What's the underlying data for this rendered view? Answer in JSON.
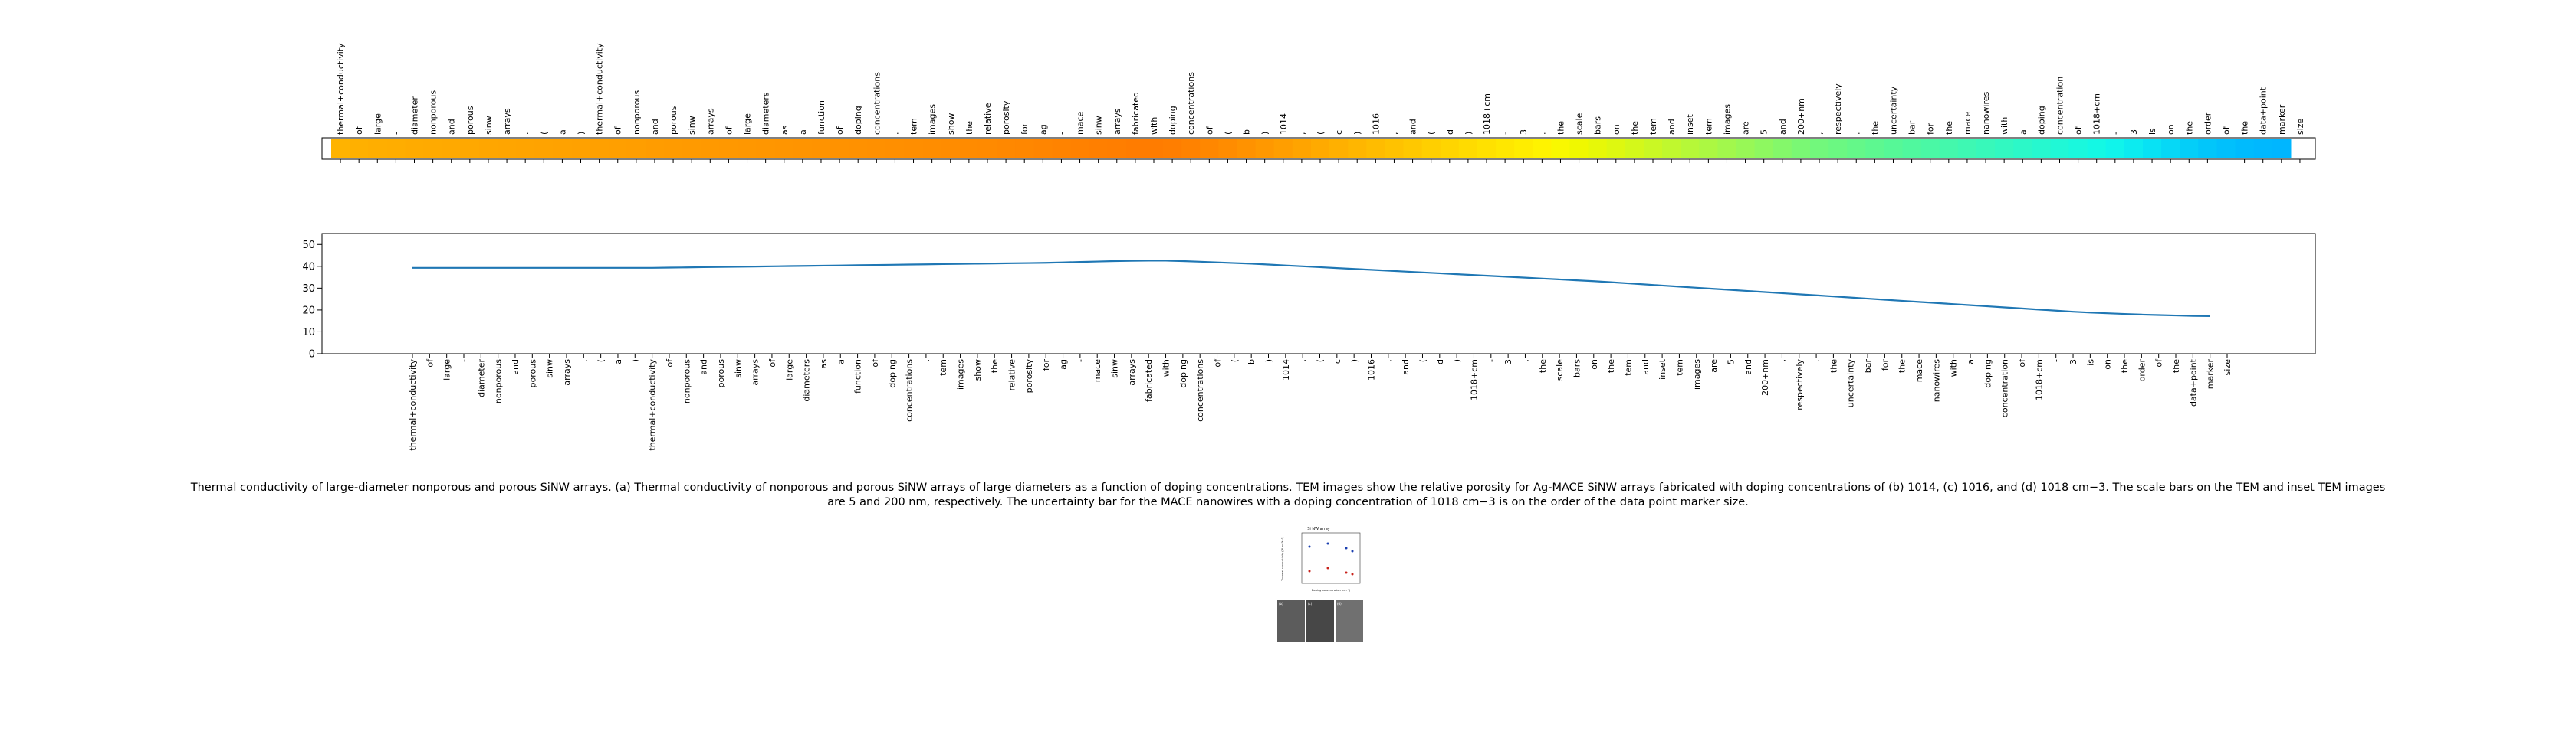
{
  "tokens": [
    "thermal+conductivity",
    "of",
    "large",
    "-",
    "diameter",
    "nonporous",
    "and",
    "porous",
    "sinw",
    "arrays",
    ".",
    "(",
    "a",
    ")",
    "thermal+conductivity",
    "of",
    "nonporous",
    "and",
    "porous",
    "sinw",
    "arrays",
    "of",
    "large",
    "diameters",
    "as",
    "a",
    "function",
    "of",
    "doping",
    "concentrations",
    ".",
    "tem",
    "images",
    "show",
    "the",
    "relative",
    "porosity",
    "for",
    "ag",
    "-",
    "mace",
    "sinw",
    "arrays",
    "fabricated",
    "with",
    "doping",
    "concentrations",
    "of",
    "(",
    "b",
    ")",
    "1014",
    ",",
    "(",
    "c",
    ")",
    "1016",
    ",",
    "and",
    "(",
    "d",
    ")",
    "1018+cm",
    "-",
    "3",
    ".",
    "the",
    "scale",
    "bars",
    "on",
    "the",
    "tem",
    "and",
    "inset",
    "tem",
    "images",
    "are",
    "5",
    "and",
    "200+nm",
    ",",
    "respectively",
    ".",
    "the",
    "uncertainty",
    "bar",
    "for",
    "the",
    "mace",
    "nanowires",
    "with",
    "a",
    "doping",
    "concentration",
    "of",
    "1018+cm",
    "-",
    "3",
    "is",
    "on",
    "the",
    "order",
    "of",
    "the",
    "data+point",
    "marker",
    "size"
  ],
  "caption": "Thermal conductivity of large-diameter nonporous and porous SiNW arrays. (a) Thermal conductivity of nonporous and porous SiNW arrays of large diameters as a function of doping concentrations. TEM images show the relative porosity for Ag-MACE SiNW arrays fabricated with doping concentrations of (b) 1014, (c) 1016, and (d) 1018 cm−3. The scale bars on the TEM and inset TEM images are 5 and 200 nm, respectively. The uncertainty bar for the MACE nanowires with a doping concentration of 1018 cm−3 is on the order of the data point marker size.",
  "thumbnail": {
    "header": "Si NW array",
    "ylabel": "Thermal conductivity (W m⁻¹K⁻¹)",
    "xlabel": "Doping concentration (cm⁻³)",
    "panel_labels": [
      "(b)",
      "(c)",
      "(d)"
    ]
  },
  "chart_data": [
    {
      "type": "heatmap",
      "title": "",
      "colormap": "jet (orange → yellow → green → cyan)",
      "x_tick_labels_ref": "tokens",
      "colors": [
        "#ffb300",
        "#ffb000",
        "#ffae00",
        "#ffad00",
        "#ffab00",
        "#ffaa00",
        "#ffa900",
        "#ffa800",
        "#ffa600",
        "#ffa500",
        "#ffa400",
        "#ffa300",
        "#ffa200",
        "#ffa100",
        "#ffa000",
        "#ff9f00",
        "#ff9e00",
        "#ff9c00",
        "#ff9b00",
        "#ff9a00",
        "#ff9900",
        "#ff9800",
        "#ff9700",
        "#ff9600",
        "#ff9500",
        "#ff9400",
        "#ff9300",
        "#ff9200",
        "#ff9100",
        "#ff9000",
        "#ff8f00",
        "#ff8e00",
        "#ff8d00",
        "#ff8c00",
        "#ff8b00",
        "#ff8a00",
        "#ff8800",
        "#ff8700",
        "#ff8500",
        "#ff8300",
        "#ff8100",
        "#ff7f00",
        "#ff7e00",
        "#ff7c00",
        "#ff7c00",
        "#ff7e00",
        "#ff8200",
        "#ff8700",
        "#ff8c00",
        "#ff9200",
        "#ff9800",
        "#ff9e00",
        "#ffa400",
        "#ffaa00",
        "#ffb000",
        "#ffb600",
        "#ffbc00",
        "#ffc200",
        "#ffc800",
        "#ffcf00",
        "#ffd500",
        "#ffdb00",
        "#ffe100",
        "#ffe700",
        "#ffed00",
        "#fff300",
        "#f9f800",
        "#f0f800",
        "#e7f808",
        "#def810",
        "#d4f81a",
        "#caf824",
        "#c0f82e",
        "#b6f838",
        "#acf842",
        "#a2f84c",
        "#98f856",
        "#8ef860",
        "#84f86a",
        "#7af874",
        "#72f87c",
        "#6bf882",
        "#64f889",
        "#5df890",
        "#56f897",
        "#50f89e",
        "#4af8a5",
        "#44f8ac",
        "#3ef8b3",
        "#38f8ba",
        "#32f8c1",
        "#2cf8c8",
        "#26f8cf",
        "#20f8d6",
        "#1af8dd",
        "#14f8e4",
        "#10f4eb",
        "#0cebf0",
        "#08e2f4",
        "#06d8f6",
        "#04cef8",
        "#02c6fa",
        "#01c0fc",
        "#00bbfd",
        "#00b8fe",
        "#00b6ff"
      ]
    },
    {
      "type": "line",
      "title": "",
      "xlabel": "",
      "ylabel": "",
      "x_tick_labels_ref": "tokens",
      "y_ticks": [
        0,
        10,
        20,
        30,
        40,
        50
      ],
      "ylim": [
        0,
        55
      ],
      "grid": false,
      "color": "#1f77b4",
      "series": [
        {
          "values": [
            39.3,
            39.3,
            39.3,
            39.3,
            39.3,
            39.3,
            39.3,
            39.3,
            39.3,
            39.3,
            39.3,
            39.3,
            39.3,
            39.3,
            39.3,
            39.4,
            39.5,
            39.6,
            39.7,
            39.8,
            39.9,
            40.0,
            40.1,
            40.2,
            40.3,
            40.4,
            40.5,
            40.6,
            40.7,
            40.8,
            40.9,
            41.0,
            41.1,
            41.2,
            41.3,
            41.4,
            41.5,
            41.6,
            41.8,
            42.0,
            42.2,
            42.4,
            42.5,
            42.6,
            42.6,
            42.4,
            42.1,
            41.8,
            41.5,
            41.2,
            40.8,
            40.4,
            40.0,
            39.6,
            39.2,
            38.8,
            38.4,
            38.0,
            37.6,
            37.2,
            36.8,
            36.4,
            36.0,
            35.6,
            35.2,
            34.8,
            34.4,
            34.0,
            33.6,
            33.2,
            32.7,
            32.2,
            31.7,
            31.2,
            30.7,
            30.2,
            29.7,
            29.2,
            28.7,
            28.2,
            27.7,
            27.2,
            26.7,
            26.2,
            25.7,
            25.2,
            24.7,
            24.2,
            23.7,
            23.2,
            22.7,
            22.2,
            21.7,
            21.2,
            20.7,
            20.2,
            19.7,
            19.2,
            18.8,
            18.5,
            18.2,
            17.9,
            17.7,
            17.5,
            17.3,
            17.2
          ]
        }
      ]
    }
  ]
}
